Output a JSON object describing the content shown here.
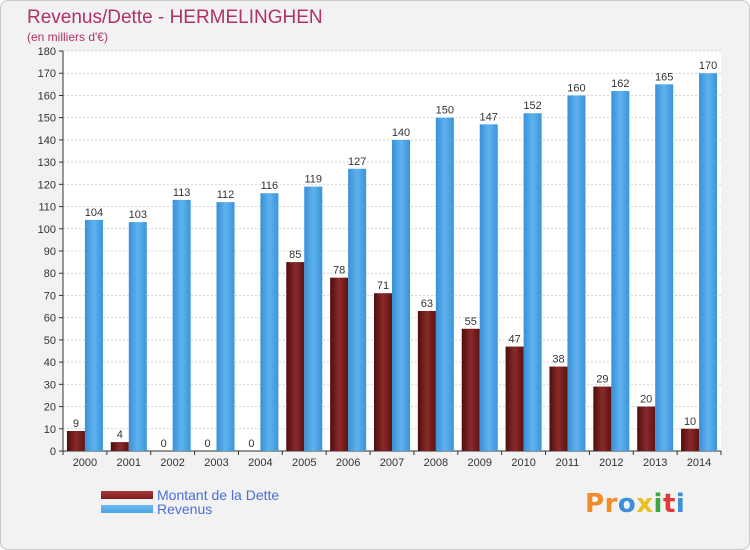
{
  "chart_data": {
    "type": "bar",
    "title": "Revenus/Dette - HERMELINGHEN",
    "subtitle": "(en milliers d'€)",
    "categories": [
      "2000",
      "2001",
      "2002",
      "2003",
      "2004",
      "2005",
      "2006",
      "2007",
      "2008",
      "2009",
      "2010",
      "2011",
      "2012",
      "2013",
      "2014"
    ],
    "series": [
      {
        "name": "Montant de la Dette",
        "color": "#7a1c1c",
        "values": [
          9,
          4,
          0,
          0,
          0,
          85,
          78,
          71,
          63,
          55,
          47,
          38,
          29,
          20,
          10
        ]
      },
      {
        "name": "Revenus",
        "color": "#4aa3e6",
        "values": [
          104,
          103,
          113,
          112,
          116,
          119,
          127,
          140,
          150,
          147,
          152,
          160,
          162,
          165,
          170
        ]
      }
    ],
    "ylim": [
      0,
      180
    ],
    "yticks": [
      0,
      10,
      20,
      30,
      40,
      50,
      60,
      70,
      80,
      90,
      100,
      110,
      120,
      130,
      140,
      150,
      160,
      170,
      180
    ],
    "grid": true,
    "legend_position": "bottom-left"
  },
  "logo": {
    "text": "Proxiti",
    "colors": [
      "#f28c28",
      "#f28c28",
      "#3a8fd8",
      "#e8c020",
      "#3aa83a",
      "#e23a3a",
      "#3a8fd8"
    ]
  }
}
